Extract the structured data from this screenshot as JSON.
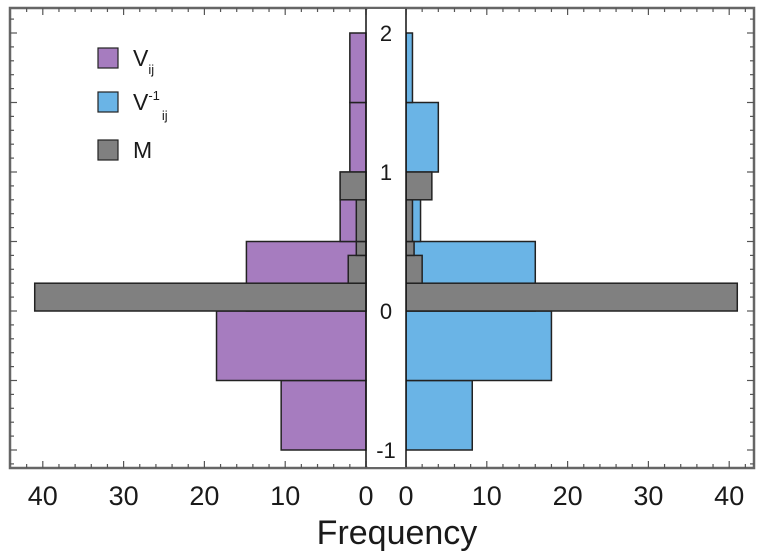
{
  "chart_data": {
    "type": "bar",
    "orientation": "horizontal",
    "layout": "back-to-back",
    "xlabel": "Frequency",
    "ylabel": "",
    "title": "",
    "left_xlim": [
      0,
      40
    ],
    "right_xlim": [
      0,
      40
    ],
    "left_xticks": [
      "40",
      "30",
      "20",
      "10",
      "0"
    ],
    "right_xticks": [
      "0",
      "10",
      "20",
      "30",
      "40"
    ],
    "ylim": [
      -1.1,
      2.1
    ],
    "yticks": [
      "-1",
      "0",
      "1",
      "2"
    ],
    "legend": {
      "placement": "top-left",
      "entries": [
        {
          "name": "V",
          "sub": "ij",
          "sup": "",
          "color": "#a67cbf"
        },
        {
          "name": "V",
          "sub": "ij",
          "sup": "-1",
          "color": "#6ab4e6"
        },
        {
          "name": "M",
          "sub": "",
          "sup": "",
          "color": "#808080"
        }
      ]
    },
    "series": [
      {
        "key": "V_ij",
        "side": "left",
        "color": "#a67cbf",
        "bins": [
          {
            "y0": -1.0,
            "y1": -0.5,
            "value": 10.5
          },
          {
            "y0": -0.5,
            "y1": 0.0,
            "value": 18.5
          },
          {
            "y0": 0.0,
            "y1": 0.5,
            "value": 14.8
          },
          {
            "y0": 0.5,
            "y1": 1.0,
            "value": 3.2
          },
          {
            "y0": 1.0,
            "y1": 1.5,
            "value": 2.0
          },
          {
            "y0": 1.5,
            "y1": 2.0,
            "value": 2.0
          }
        ]
      },
      {
        "key": "V_ij_inverse",
        "side": "right",
        "color": "#6ab4e6",
        "bins": [
          {
            "y0": -1.0,
            "y1": -0.5,
            "value": 8.2
          },
          {
            "y0": -0.5,
            "y1": 0.0,
            "value": 18.0
          },
          {
            "y0": 0.0,
            "y1": 0.5,
            "value": 16.0
          },
          {
            "y0": 0.5,
            "y1": 1.0,
            "value": 1.8
          },
          {
            "y0": 1.0,
            "y1": 1.5,
            "value": 4.0
          },
          {
            "y0": 1.5,
            "y1": 2.0,
            "value": 0.8
          }
        ]
      },
      {
        "key": "M",
        "side": "both",
        "color": "#808080",
        "bins": [
          {
            "y0": 0.0,
            "y1": 0.2,
            "value_left": 41.0,
            "value_right": 41.0
          },
          {
            "y0": 0.2,
            "y1": 0.4,
            "value_left": 2.2,
            "value_right": 2.0
          },
          {
            "y0": 0.4,
            "y1": 0.5,
            "value_left": 1.2,
            "value_right": 1.0
          },
          {
            "y0": 0.5,
            "y1": 0.8,
            "value_left": 1.2,
            "value_right": 0.8
          },
          {
            "y0": 0.8,
            "y1": 1.0,
            "value_left": 3.2,
            "value_right": 3.2
          }
        ]
      }
    ]
  }
}
